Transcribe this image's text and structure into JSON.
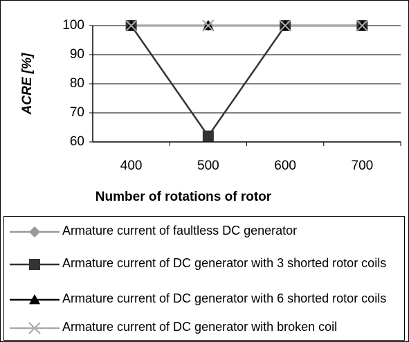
{
  "chart_data": {
    "type": "line",
    "xlabel": "Number of rotations of rotor",
    "ylabel": "ACRE [%]",
    "categories": [
      "400",
      "500",
      "600",
      "700"
    ],
    "series": [
      {
        "name": "Armature current of faultless DC generator",
        "color": "#999999",
        "marker": "diamond",
        "values": [
          100,
          100,
          100,
          100
        ]
      },
      {
        "name": "Armature current of DC generator with 3 shorted rotor coils",
        "color": "#333333",
        "marker": "square",
        "values": [
          100,
          62,
          100,
          100
        ]
      },
      {
        "name": "Armature current of DC generator with 6 shorted rotor coils",
        "color": "#000000",
        "marker": "triangle",
        "values": [
          100,
          100,
          100,
          100
        ]
      },
      {
        "name": "Armature current of DC generator with broken coil",
        "color": "#aaaaaa",
        "marker": "x",
        "values": [
          100,
          100,
          100,
          100
        ]
      }
    ],
    "ylim": [
      60,
      100
    ],
    "yticks": [
      60,
      70,
      80,
      90,
      100
    ],
    "grid": true,
    "legend": "bottom"
  }
}
